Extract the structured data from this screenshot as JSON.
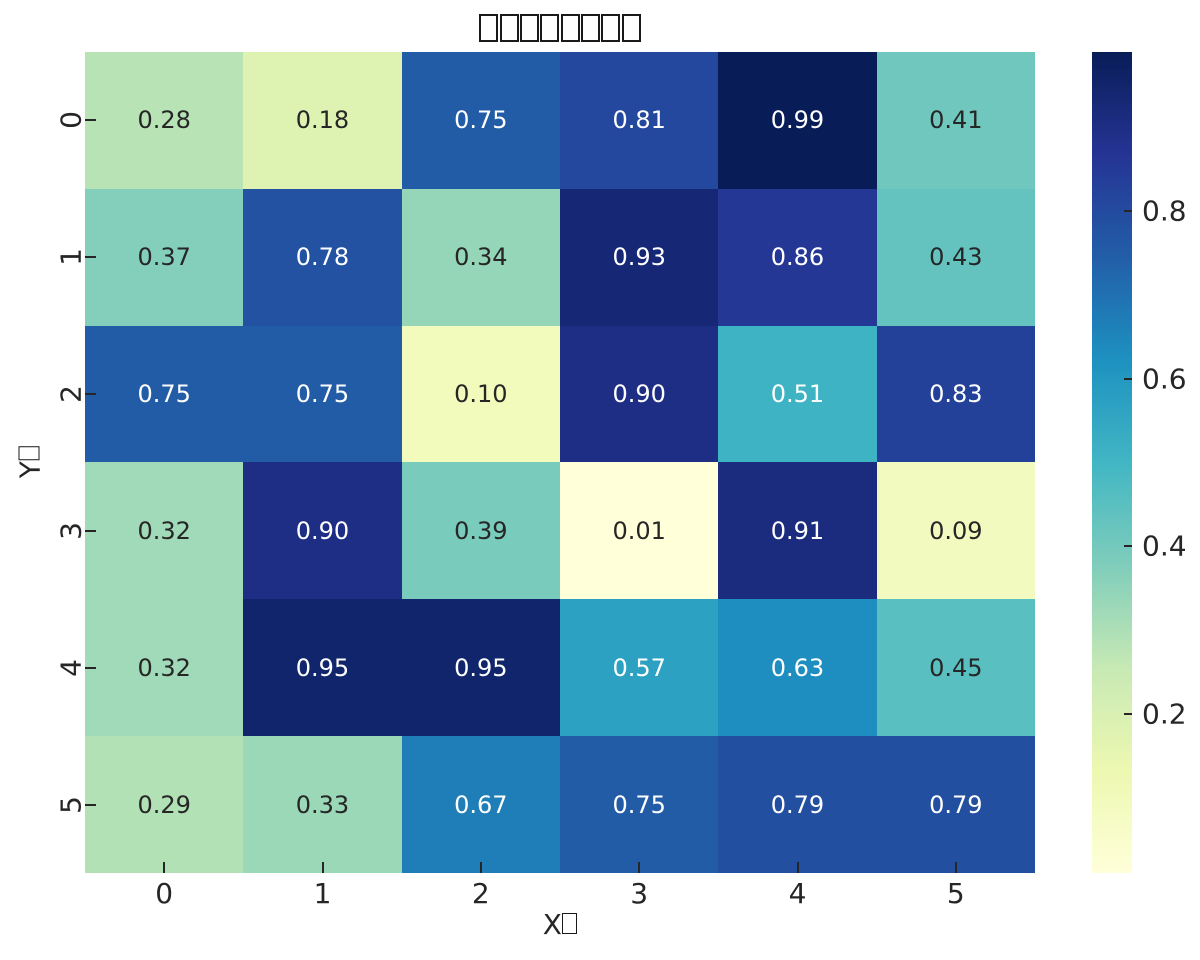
{
  "figure": {
    "background": "#ffffff",
    "tick_color": "#262626"
  },
  "chart_data": {
    "type": "heatmap",
    "title": "□□□□□□□□",
    "xlabel": "X□",
    "ylabel": "Y□",
    "x_ticklabels": [
      "0",
      "1",
      "2",
      "3",
      "4",
      "5"
    ],
    "y_ticklabels": [
      "0",
      "1",
      "2",
      "3",
      "4",
      "5"
    ],
    "values": [
      [
        0.28,
        0.18,
        0.75,
        0.81,
        0.99,
        0.41
      ],
      [
        0.37,
        0.78,
        0.34,
        0.93,
        0.86,
        0.43
      ],
      [
        0.75,
        0.75,
        0.1,
        0.9,
        0.51,
        0.83
      ],
      [
        0.32,
        0.9,
        0.39,
        0.01,
        0.91,
        0.09
      ],
      [
        0.32,
        0.95,
        0.95,
        0.57,
        0.63,
        0.45
      ],
      [
        0.29,
        0.33,
        0.67,
        0.75,
        0.79,
        0.79
      ]
    ],
    "value_decimals": 2,
    "vmin": 0.01,
    "vmax": 0.99,
    "grid": false,
    "colormap": {
      "name": "YlGnBu",
      "stops": [
        "#ffffd9",
        "#edf8b1",
        "#c7e9b4",
        "#7fcdbb",
        "#41b6c4",
        "#1d91c0",
        "#225ea8",
        "#253494",
        "#081d58"
      ]
    },
    "colorbar": {
      "position": "right",
      "tick_values": [
        0.8,
        0.6,
        0.4,
        0.2
      ],
      "tick_labels": [
        "0.8",
        "0.6",
        "0.4",
        "0.2"
      ]
    },
    "annotation_colors": {
      "dark": "#262626",
      "light": "#ffffff"
    }
  }
}
